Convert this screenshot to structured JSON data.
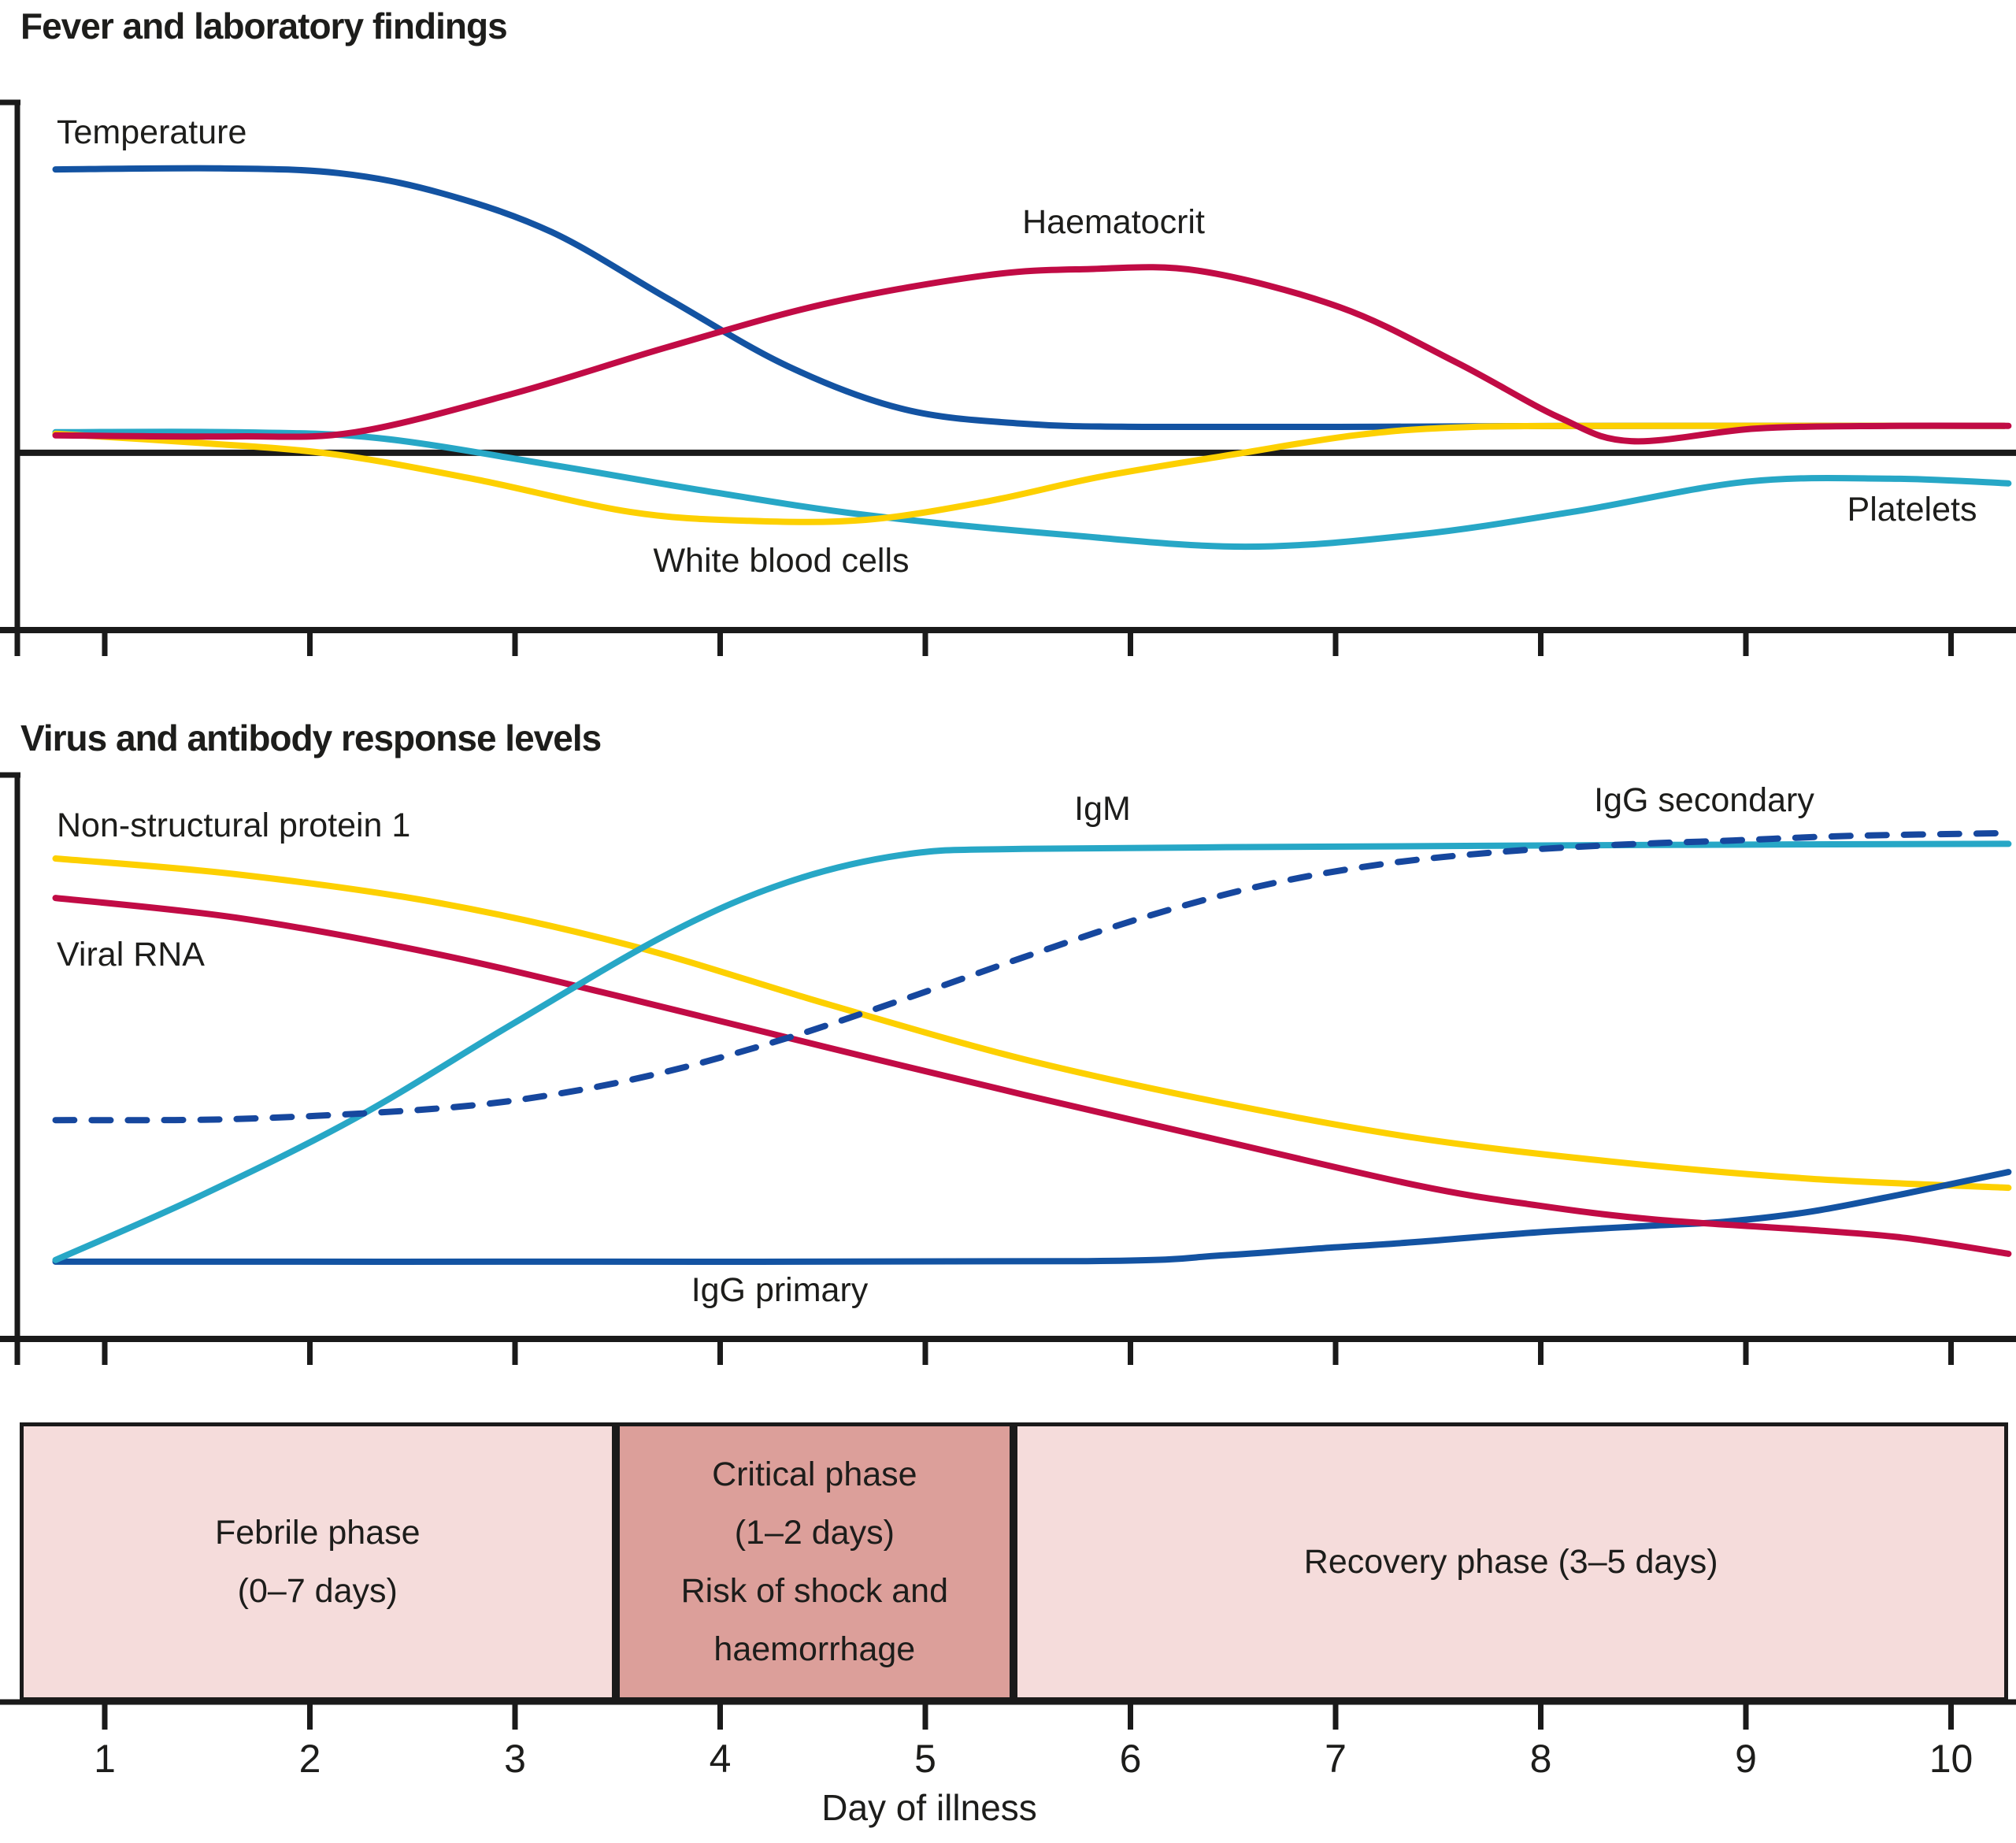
{
  "panel1_title": "Fever and laboratory findings",
  "panel2_title": "Virus and antibody response levels",
  "x_axis_title": "Day of illness",
  "colors": {
    "blue": "#1353a2",
    "red": "#c10b45",
    "yellow": "#fdd000",
    "cyan": "#27a7c6",
    "dashed_blue": "#16479e",
    "axis_black": "#1a1a1a",
    "phase_light_pink": "#f5dcdb",
    "phase_dark_pink": "#dc9f9a"
  },
  "labels": {
    "temperature": "Temperature",
    "haematocrit": "Haematocrit",
    "white_blood_cells": "White blood cells",
    "platelets": "Platelets",
    "ns1": "Non-structural protein 1",
    "viral_rna": "Viral RNA",
    "igm": "IgM",
    "igg_secondary": "IgG secondary",
    "igg_primary": "IgG primary"
  },
  "chart_data": [
    {
      "type": "line",
      "panel": "fever-and-laboratory-findings",
      "title": "Fever and laboratory findings",
      "xlabel": "Day of illness",
      "ylabel": "",
      "x_range_days": [
        0.75,
        10.3
      ],
      "y_axis_note": "unlabelled relative level, 0-100",
      "grid": false,
      "baseline_level": 33.6,
      "series": [
        {
          "name": "Temperature",
          "color": "#1353a2",
          "dashed": false,
          "points": [
            [
              0.76,
              87.3
            ],
            [
              1.56,
              87.5
            ],
            [
              2.14,
              86.6
            ],
            [
              2.64,
              82.8
            ],
            [
              3.18,
              75.4
            ],
            [
              3.75,
              62.7
            ],
            [
              4.33,
              50.0
            ],
            [
              4.9,
              41.8
            ],
            [
              5.48,
              39.1
            ],
            [
              6.06,
              38.5
            ],
            [
              7.02,
              38.5
            ],
            [
              8.17,
              38.7
            ],
            [
              10.26,
              38.7
            ]
          ]
        },
        {
          "name": "Platelets",
          "color": "#27a7c6",
          "dashed": false,
          "points": [
            [
              0.76,
              37.5
            ],
            [
              1.64,
              37.5
            ],
            [
              2.33,
              36.4
            ],
            [
              3.18,
              31.3
            ],
            [
              3.94,
              26.3
            ],
            [
              4.71,
              21.8
            ],
            [
              5.67,
              18.1
            ],
            [
              6.56,
              15.8
            ],
            [
              7.4,
              18.1
            ],
            [
              8.17,
              22.5
            ],
            [
              9.0,
              28.1
            ],
            [
              9.7,
              28.7
            ],
            [
              10.28,
              27.8
            ]
          ]
        },
        {
          "name": "White blood cells",
          "color": "#fdd000",
          "dashed": false,
          "points": [
            [
              0.76,
              37.2
            ],
            [
              1.45,
              35.5
            ],
            [
              2.1,
              33.4
            ],
            [
              2.79,
              28.7
            ],
            [
              3.56,
              22.4
            ],
            [
              4.14,
              20.7
            ],
            [
              4.71,
              20.9
            ],
            [
              5.29,
              24.3
            ],
            [
              5.86,
              29.1
            ],
            [
              6.52,
              33.4
            ],
            [
              7.09,
              36.9
            ],
            [
              7.59,
              38.4
            ],
            [
              8.36,
              38.7
            ],
            [
              10.26,
              38.7
            ]
          ]
        },
        {
          "name": "Haematocrit",
          "color": "#c10b45",
          "dashed": false,
          "points": [
            [
              0.76,
              36.9
            ],
            [
              1.64,
              36.7
            ],
            [
              2.22,
              37.5
            ],
            [
              2.99,
              44.8
            ],
            [
              3.75,
              53.7
            ],
            [
              4.52,
              61.9
            ],
            [
              5.29,
              67.2
            ],
            [
              5.79,
              68.4
            ],
            [
              6.33,
              68.1
            ],
            [
              7.02,
              61.2
            ],
            [
              7.59,
              50.7
            ],
            [
              8.09,
              40.3
            ],
            [
              8.44,
              35.8
            ],
            [
              9.05,
              38.2
            ],
            [
              9.7,
              38.7
            ],
            [
              10.28,
              38.7
            ]
          ]
        }
      ]
    },
    {
      "type": "line",
      "panel": "virus-and-antibody-response-levels",
      "title": "Virus and antibody response levels",
      "xlabel": "Day of illness",
      "ylabel": "",
      "x_range_days": [
        0.75,
        10.3
      ],
      "y_axis_note": "unlabelled relative level, 0-100",
      "grid": false,
      "series": [
        {
          "name": "Non-structural protein 1",
          "color": "#fdd000",
          "dashed": false,
          "points": [
            [
              0.76,
              85.2
            ],
            [
              1.64,
              82.4
            ],
            [
              2.6,
              77.5
            ],
            [
              3.56,
              69.8
            ],
            [
              4.52,
              59.4
            ],
            [
              5.48,
              49.6
            ],
            [
              6.44,
              41.9
            ],
            [
              7.4,
              35.6
            ],
            [
              8.36,
              31.4
            ],
            [
              9.32,
              28.4
            ],
            [
              10.28,
              26.8
            ]
          ]
        },
        {
          "name": "IgG primary",
          "color": "#1353a2",
          "dashed": false,
          "points": [
            [
              0.76,
              13.7
            ],
            [
              3.18,
              13.7
            ],
            [
              5.79,
              13.8
            ],
            [
              6.44,
              14.8
            ],
            [
              6.94,
              16.1
            ],
            [
              7.4,
              17.2
            ],
            [
              7.98,
              18.9
            ],
            [
              8.55,
              20.1
            ],
            [
              8.9,
              20.8
            ],
            [
              9.32,
              22.6
            ],
            [
              9.78,
              25.8
            ],
            [
              10.28,
              29.6
            ]
          ]
        },
        {
          "name": "Viral RNA",
          "color": "#c10b45",
          "dashed": false,
          "points": [
            [
              0.76,
              78.2
            ],
            [
              1.64,
              74.7
            ],
            [
              2.6,
              68.4
            ],
            [
              3.56,
              60.3
            ],
            [
              4.52,
              51.7
            ],
            [
              5.48,
              43.3
            ],
            [
              6.44,
              35.2
            ],
            [
              7.4,
              27.2
            ],
            [
              7.98,
              23.7
            ],
            [
              8.55,
              21.2
            ],
            [
              9.32,
              19.3
            ],
            [
              9.78,
              17.9
            ],
            [
              10.28,
              15.1
            ]
          ]
        },
        {
          "name": "IgM",
          "color": "#27a7c6",
          "dashed": false,
          "points": [
            [
              0.76,
              14.0
            ],
            [
              1.45,
              25.1
            ],
            [
              2.22,
              39.1
            ],
            [
              2.99,
              55.9
            ],
            [
              3.75,
              71.9
            ],
            [
              4.33,
              81.0
            ],
            [
              4.9,
              85.9
            ],
            [
              5.48,
              86.9
            ],
            [
              7.02,
              87.3
            ],
            [
              8.55,
              87.6
            ],
            [
              10.28,
              87.8
            ]
          ]
        },
        {
          "name": "IgG secondary",
          "color": "#16479e",
          "dashed": true,
          "points": [
            [
              0.76,
              38.8
            ],
            [
              1.64,
              39.0
            ],
            [
              2.6,
              40.8
            ],
            [
              3.18,
              43.3
            ],
            [
              3.75,
              47.5
            ],
            [
              4.33,
              53.4
            ],
            [
              4.9,
              60.3
            ],
            [
              5.48,
              67.7
            ],
            [
              6.06,
              74.7
            ],
            [
              6.63,
              80.3
            ],
            [
              7.21,
              84.1
            ],
            [
              7.78,
              86.3
            ],
            [
              8.36,
              87.6
            ],
            [
              8.94,
              88.4
            ],
            [
              9.51,
              89.2
            ],
            [
              10.28,
              89.7
            ]
          ]
        }
      ]
    },
    {
      "type": "timeline",
      "panel": "phases-of-illness",
      "day_ticks": [
        1,
        2,
        3,
        4,
        5,
        6,
        7,
        8,
        9,
        10
      ],
      "phases": [
        {
          "name": "febrile",
          "start_day": 0.585,
          "end_day": 3.49,
          "color": "#f5dcdb",
          "lines": [
            "Febrile phase",
            "(0–7 days)"
          ]
        },
        {
          "name": "critical",
          "start_day": 3.49,
          "end_day": 5.43,
          "color": "#dc9f9a",
          "lines": [
            "Critical phase",
            "(1–2 days)",
            "Risk of shock and",
            "haemorrhage"
          ]
        },
        {
          "name": "recovery",
          "start_day": 5.43,
          "end_day": 10.28,
          "color": "#f5dcdb",
          "lines": [
            "Recovery phase (3–5 days)"
          ]
        }
      ]
    }
  ]
}
